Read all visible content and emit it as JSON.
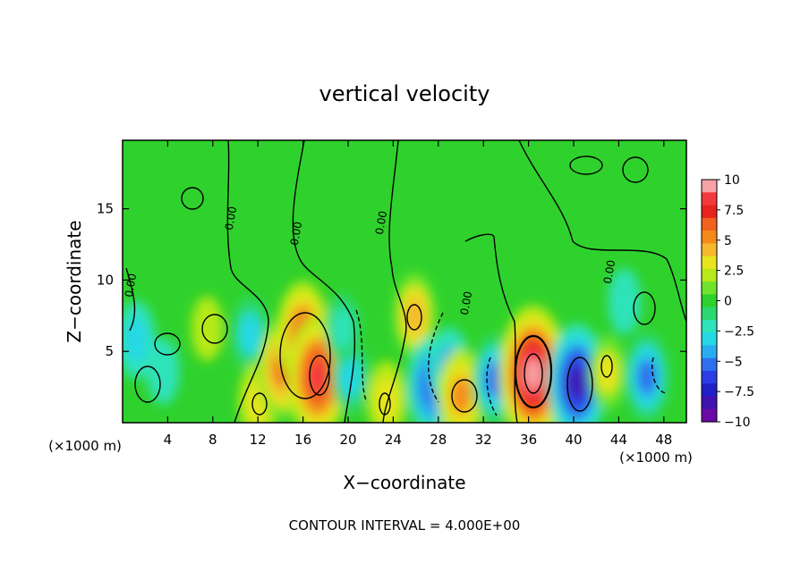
{
  "chart_data": {
    "type": "heatmap",
    "title": "vertical velocity",
    "xlabel": "X−coordinate",
    "ylabel": "Z−coordinate",
    "x_unit_left": "(×1000 m)",
    "x_unit_right": "(×1000 m)",
    "xlim": [
      0,
      50
    ],
    "ylim": [
      0,
      19.8
    ],
    "x_ticks": [
      4,
      8,
      12,
      16,
      20,
      24,
      28,
      32,
      36,
      40,
      44,
      48
    ],
    "y_ticks": [
      5,
      10,
      15
    ],
    "colorbar": {
      "ticks": [
        "10",
        "7.5",
        "5",
        "2.5",
        "0",
        "−2.5",
        "−5",
        "−7.5",
        "−10"
      ],
      "range": [
        -10,
        10
      ],
      "colors": [
        "#f6a2a6",
        "#f4393e",
        "#e8231c",
        "#f2611f",
        "#f58a1a",
        "#f6b82d",
        "#e8e51e",
        "#b6ea18",
        "#6ee52a",
        "#2fd22c",
        "#2ad86f",
        "#2fe3ba",
        "#25d8e6",
        "#28aef0",
        "#2f70ee",
        "#2a3ee4",
        "#2020c8",
        "#4012b0",
        "#6a0aa6"
      ]
    },
    "contour_label": "0.00",
    "contour_interval_text": "CONTOUR INTERVAL = 4.000E+00",
    "features": [
      {
        "x": 1.2,
        "z": 5.8,
        "w": -3.5
      },
      {
        "x": 3.6,
        "z": 3.6,
        "w": -2.0
      },
      {
        "x": 7.5,
        "z": 6.6,
        "w": 1.8
      },
      {
        "x": 11.3,
        "z": 6.2,
        "w": -3.0
      },
      {
        "x": 12.0,
        "z": 1.5,
        "w": 3.5
      },
      {
        "x": 14.2,
        "z": 3.8,
        "w": 6.5
      },
      {
        "x": 16.0,
        "z": 6.2,
        "w": 7.0
      },
      {
        "x": 17.3,
        "z": 3.2,
        "w": 9.0
      },
      {
        "x": 20.2,
        "z": 3.2,
        "w": -3.0
      },
      {
        "x": 19.5,
        "z": 6.6,
        "w": -2.5
      },
      {
        "x": 23.4,
        "z": 1.6,
        "w": 3.5
      },
      {
        "x": 25.9,
        "z": 7.5,
        "w": 4.5
      },
      {
        "x": 27.4,
        "z": 2.6,
        "w": -6.0
      },
      {
        "x": 29.0,
        "z": 3.8,
        "w": -4.0
      },
      {
        "x": 30.0,
        "z": 1.9,
        "w": 5.5
      },
      {
        "x": 33.0,
        "z": 3.0,
        "w": -5.0
      },
      {
        "x": 36.4,
        "z": 3.4,
        "w": 11.0
      },
      {
        "x": 40.3,
        "z": 2.8,
        "w": -8.5
      },
      {
        "x": 43.0,
        "z": 3.5,
        "w": 3.0
      },
      {
        "x": 46.5,
        "z": 3.2,
        "w": -5.0
      },
      {
        "x": 44.5,
        "z": 8.5,
        "w": -2.0
      }
    ]
  }
}
